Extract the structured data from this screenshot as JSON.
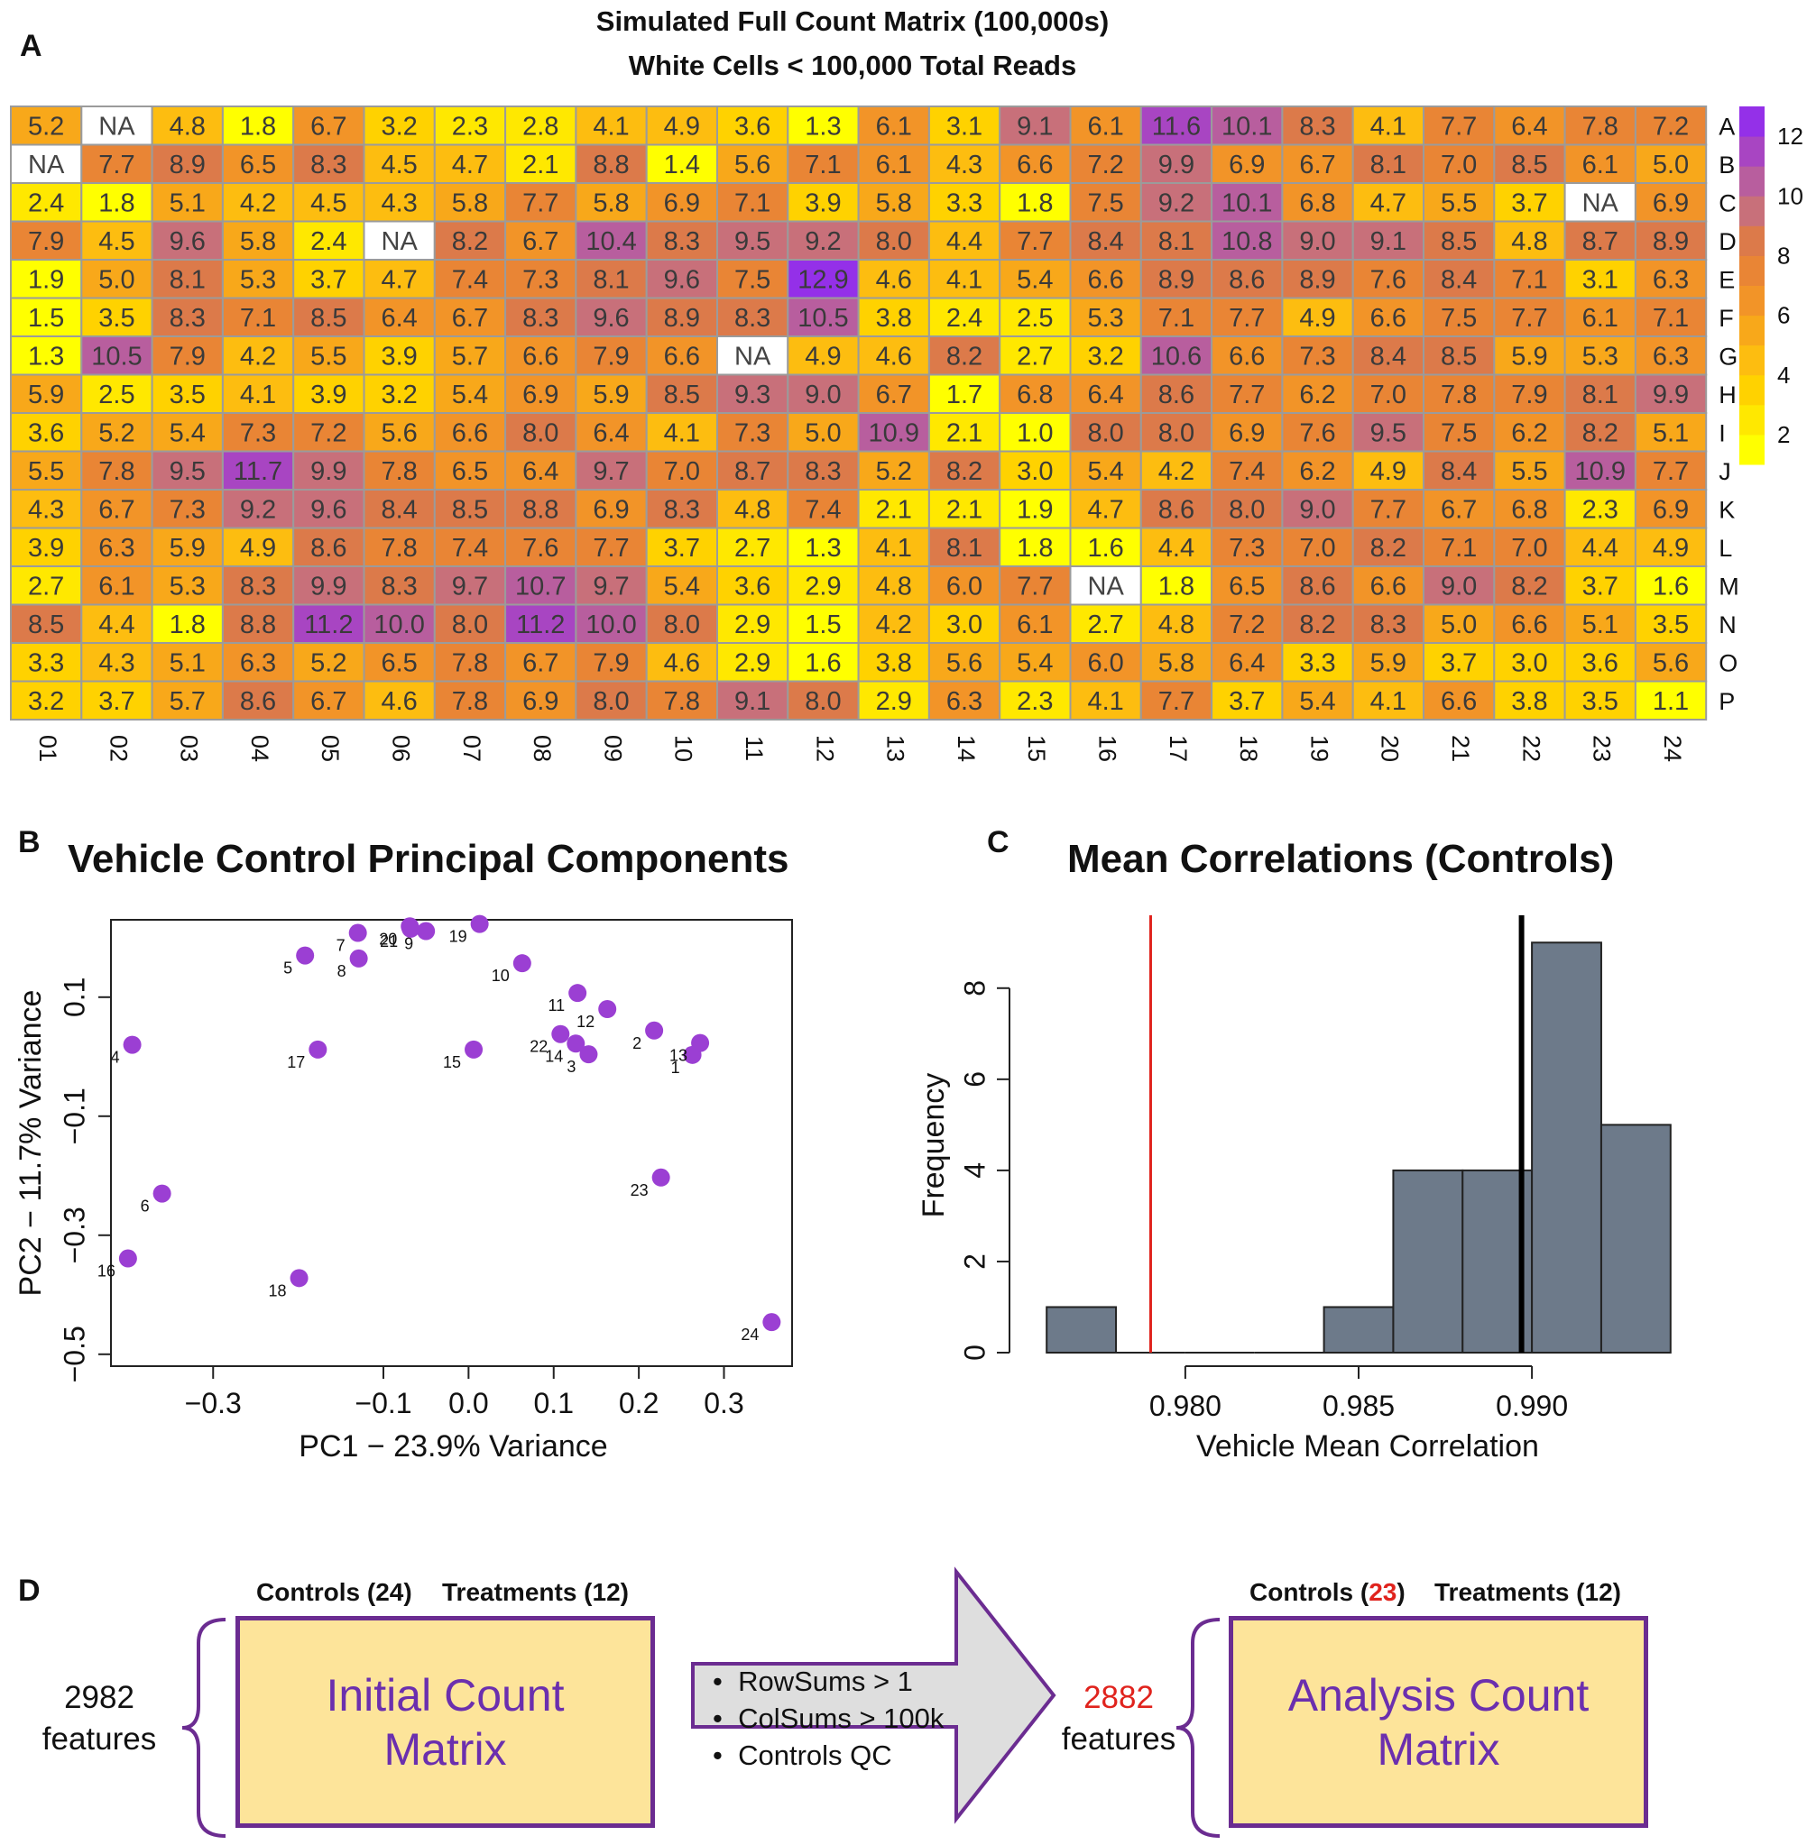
{
  "panel_letters": {
    "a": "A",
    "b": "B",
    "c": "C",
    "d": "D"
  },
  "colors": {
    "border": "#9b9b9b",
    "na_fill": "#ffffff",
    "point": "#9b3fd3",
    "hist_fill": "#6d7a8a",
    "ref_red": "#e0231d",
    "box_fill": "#fde49a",
    "box_border": "#6b2c91",
    "box_text": "#6b2fae",
    "arrow_fill": "#dedede",
    "palette": [
      "#ffff00",
      "#ffe800",
      "#ffd200",
      "#fdbd10",
      "#f8a81a",
      "#f29428",
      "#e98535",
      "#dc7a4a",
      "#c8707a",
      "#b85e9e",
      "#a845c2",
      "#9430e8"
    ]
  },
  "chart_data": [
    {
      "type": "heatmap",
      "title": "Simulated Full Count Matrix (100,000s)",
      "subtitle": "White Cells < 100,000 Total Reads",
      "rows": [
        "A",
        "B",
        "C",
        "D",
        "E",
        "F",
        "G",
        "H",
        "I",
        "J",
        "K",
        "L",
        "M",
        "N",
        "O",
        "P"
      ],
      "columns": [
        "01",
        "02",
        "03",
        "04",
        "05",
        "06",
        "07",
        "08",
        "09",
        "10",
        "11",
        "12",
        "13",
        "14",
        "15",
        "16",
        "17",
        "18",
        "19",
        "20",
        "21",
        "22",
        "23",
        "24"
      ],
      "values": [
        [
          5.2,
          "NA",
          4.8,
          1.8,
          6.7,
          3.2,
          2.3,
          2.8,
          4.1,
          4.9,
          3.6,
          1.3,
          6.1,
          3.1,
          9.1,
          6.1,
          11.6,
          10.1,
          8.3,
          4.1,
          7.7,
          6.4,
          7.8,
          7.2
        ],
        [
          "NA",
          7.7,
          8.9,
          6.5,
          8.3,
          4.5,
          4.7,
          2.1,
          8.8,
          1.4,
          5.6,
          7.1,
          6.1,
          4.3,
          6.6,
          7.2,
          9.9,
          6.9,
          6.7,
          8.1,
          7.0,
          8.5,
          6.1,
          5.0
        ],
        [
          2.4,
          1.8,
          5.1,
          4.2,
          4.5,
          4.3,
          5.8,
          7.7,
          5.8,
          6.9,
          7.1,
          3.9,
          5.8,
          3.3,
          1.8,
          7.5,
          9.2,
          10.1,
          6.8,
          4.7,
          5.5,
          3.7,
          "NA",
          6.9
        ],
        [
          7.9,
          4.5,
          9.6,
          5.8,
          2.4,
          "NA",
          8.2,
          6.7,
          10.4,
          8.3,
          9.5,
          9.2,
          8.0,
          4.4,
          7.7,
          8.4,
          8.1,
          10.8,
          9.0,
          9.1,
          8.5,
          4.8,
          8.7,
          8.9
        ],
        [
          1.9,
          5.0,
          8.1,
          5.3,
          3.7,
          4.7,
          7.4,
          7.3,
          8.1,
          9.6,
          7.5,
          12.9,
          4.6,
          4.1,
          5.4,
          6.6,
          8.9,
          8.6,
          8.9,
          7.6,
          8.4,
          7.1,
          3.1,
          6.3
        ],
        [
          1.5,
          3.5,
          8.3,
          7.1,
          8.5,
          6.4,
          6.7,
          8.3,
          9.6,
          8.9,
          8.3,
          10.5,
          3.8,
          2.4,
          2.5,
          5.3,
          7.1,
          7.7,
          4.9,
          6.6,
          7.5,
          7.7,
          6.1,
          7.1
        ],
        [
          1.3,
          10.5,
          7.9,
          4.2,
          5.5,
          3.9,
          5.7,
          6.6,
          7.9,
          6.6,
          "NA",
          4.9,
          4.6,
          8.2,
          2.7,
          3.2,
          10.6,
          6.6,
          7.3,
          8.4,
          8.5,
          5.9,
          5.3,
          6.3
        ],
        [
          5.9,
          2.5,
          3.5,
          4.1,
          3.9,
          3.2,
          5.4,
          6.9,
          5.9,
          8.5,
          9.3,
          9.0,
          6.7,
          1.7,
          6.8,
          6.4,
          8.6,
          7.7,
          6.2,
          7.0,
          7.8,
          7.9,
          8.1,
          9.9
        ],
        [
          3.6,
          5.2,
          5.4,
          7.3,
          7.2,
          5.6,
          6.6,
          8.0,
          6.4,
          4.1,
          7.3,
          5.0,
          10.9,
          2.1,
          1.0,
          8.0,
          8.0,
          6.9,
          7.6,
          9.5,
          7.5,
          6.2,
          8.2,
          5.1
        ],
        [
          5.5,
          7.8,
          9.5,
          11.7,
          9.9,
          7.8,
          6.5,
          6.4,
          9.7,
          7.0,
          8.7,
          8.3,
          5.2,
          8.2,
          3.0,
          5.4,
          4.2,
          7.4,
          6.2,
          4.9,
          8.4,
          5.5,
          10.9,
          7.7
        ],
        [
          4.3,
          6.7,
          7.3,
          9.2,
          9.6,
          8.4,
          8.5,
          8.8,
          6.9,
          8.3,
          4.8,
          7.4,
          2.1,
          2.1,
          1.9,
          4.7,
          8.6,
          8.0,
          9.0,
          7.7,
          6.7,
          6.8,
          2.3,
          6.9
        ],
        [
          3.9,
          6.3,
          5.9,
          4.9,
          8.6,
          7.8,
          7.4,
          7.6,
          7.7,
          3.7,
          2.7,
          1.3,
          4.1,
          8.1,
          1.8,
          1.6,
          4.4,
          7.3,
          7.0,
          8.2,
          7.1,
          7.0,
          4.4,
          4.9
        ],
        [
          2.7,
          6.1,
          5.3,
          8.3,
          9.9,
          8.3,
          9.7,
          10.7,
          9.7,
          5.4,
          3.6,
          2.9,
          4.8,
          6.0,
          7.7,
          "NA",
          1.8,
          6.5,
          8.6,
          6.6,
          9.0,
          8.2,
          3.7,
          1.6
        ],
        [
          8.5,
          4.4,
          1.8,
          8.8,
          11.2,
          10.0,
          8.0,
          11.2,
          10.0,
          8.0,
          2.9,
          1.5,
          4.2,
          3.0,
          6.1,
          2.7,
          4.8,
          7.2,
          8.2,
          8.3,
          5.0,
          6.6,
          5.1,
          3.5
        ],
        [
          3.3,
          4.3,
          5.1,
          6.3,
          5.2,
          6.5,
          7.8,
          6.7,
          7.9,
          4.6,
          2.9,
          1.6,
          3.8,
          5.6,
          5.4,
          6.0,
          5.8,
          6.4,
          3.3,
          5.9,
          3.7,
          3.0,
          3.6,
          5.6
        ],
        [
          3.2,
          3.7,
          5.7,
          8.6,
          6.7,
          4.6,
          7.8,
          6.9,
          8.0,
          7.8,
          9.1,
          8.0,
          2.9,
          6.3,
          2.3,
          4.1,
          7.7,
          3.7,
          5.4,
          4.1,
          6.6,
          3.8,
          3.5,
          1.1
        ]
      ],
      "na_label": "NA",
      "legend": {
        "min": 1,
        "max": 13,
        "ticks": [
          2,
          4,
          6,
          8,
          10,
          12
        ],
        "tick_labels": [
          "2",
          "4",
          "6",
          "8",
          "10",
          "12"
        ]
      }
    },
    {
      "type": "scatter",
      "title": "Vehicle Control Principal Components",
      "xlabel": "PC1 − 23.9% Variance",
      "ylabel": "PC2 − 11.7% Variance",
      "xlim": [
        -0.42,
        0.38
      ],
      "ylim": [
        -0.52,
        0.23
      ],
      "xticks": [
        -0.3,
        -0.1,
        0.0,
        0.1,
        0.2,
        0.3
      ],
      "xtick_labels": [
        "−0.3",
        "−0.1",
        "0.0",
        "0.1",
        "0.2",
        "0.3"
      ],
      "yticks": [
        -0.5,
        -0.3,
        -0.1,
        0.1
      ],
      "ytick_labels": [
        "−0.5",
        "−0.3",
        "−0.1",
        "0.1"
      ],
      "points": [
        {
          "label": "1",
          "x": 0.263,
          "y": 0.003
        },
        {
          "label": "2",
          "x": 0.218,
          "y": 0.044
        },
        {
          "label": "3",
          "x": 0.141,
          "y": 0.004
        },
        {
          "label": "4",
          "x": -0.395,
          "y": 0.02
        },
        {
          "label": "5",
          "x": -0.192,
          "y": 0.17
        },
        {
          "label": "6",
          "x": -0.36,
          "y": -0.23
        },
        {
          "label": "7",
          "x": -0.13,
          "y": 0.208
        },
        {
          "label": "8",
          "x": -0.129,
          "y": 0.165
        },
        {
          "label": "9",
          "x": -0.05,
          "y": 0.211
        },
        {
          "label": "10",
          "x": 0.063,
          "y": 0.157
        },
        {
          "label": "11",
          "x": 0.128,
          "y": 0.107
        },
        {
          "label": "12",
          "x": 0.163,
          "y": 0.08
        },
        {
          "label": "13",
          "x": 0.272,
          "y": 0.023
        },
        {
          "label": "14",
          "x": 0.126,
          "y": 0.022
        },
        {
          "label": "15",
          "x": 0.006,
          "y": 0.012
        },
        {
          "label": "17",
          "x": -0.177,
          "y": 0.012
        },
        {
          "label": "16",
          "x": -0.4,
          "y": -0.339
        },
        {
          "label": "18",
          "x": -0.199,
          "y": -0.372
        },
        {
          "label": "19",
          "x": 0.013,
          "y": 0.223
        },
        {
          "label": "20",
          "x": -0.069,
          "y": 0.219
        },
        {
          "label": "21",
          "x": -0.068,
          "y": 0.215
        },
        {
          "label": "22",
          "x": 0.108,
          "y": 0.038
        },
        {
          "label": "23",
          "x": 0.226,
          "y": -0.203
        },
        {
          "label": "24",
          "x": 0.356,
          "y": -0.446
        }
      ]
    },
    {
      "type": "bar",
      "subtype": "histogram",
      "title": "Mean Correlations (Controls)",
      "xlabel": "Vehicle Mean Correlation",
      "ylabel": "Frequency",
      "xlim": [
        0.9755,
        0.9945
      ],
      "ylim": [
        0,
        9.5
      ],
      "bins": [
        {
          "x0": 0.976,
          "x1": 0.978,
          "count": 1
        },
        {
          "x0": 0.978,
          "x1": 0.98,
          "count": 0
        },
        {
          "x0": 0.98,
          "x1": 0.982,
          "count": 0
        },
        {
          "x0": 0.982,
          "x1": 0.984,
          "count": 0
        },
        {
          "x0": 0.984,
          "x1": 0.986,
          "count": 1
        },
        {
          "x0": 0.986,
          "x1": 0.988,
          "count": 4
        },
        {
          "x0": 0.988,
          "x1": 0.99,
          "count": 4
        },
        {
          "x0": 0.99,
          "x1": 0.992,
          "count": 9
        },
        {
          "x0": 0.992,
          "x1": 0.994,
          "count": 5
        }
      ],
      "xticks": [
        0.98,
        0.985,
        0.99
      ],
      "xtick_labels": [
        "0.980",
        "0.985",
        "0.990"
      ],
      "yticks": [
        0,
        2,
        4,
        6,
        8
      ],
      "ytick_labels": [
        "0",
        "2",
        "4",
        "6",
        "8"
      ],
      "ref_line_red": 0.979,
      "ref_line_black": 0.9897
    }
  ],
  "workflow": {
    "left_header_controls": "Controls (24)",
    "left_header_treatments": "Treatments (12)",
    "left_box_title": "Initial Count Matrix",
    "left_features_count": "2982",
    "left_features_label": "features",
    "arrow_items": [
      "RowSums > 1",
      "ColSums > 100k",
      "Controls QC"
    ],
    "right_header_controls_pre": "Controls (",
    "right_header_controls_num": "23",
    "right_header_controls_post": ")",
    "right_header_treatments": "Treatments (12)",
    "right_box_title": "Analysis Count Matrix",
    "right_features_count": "2882",
    "right_features_label": "features"
  }
}
